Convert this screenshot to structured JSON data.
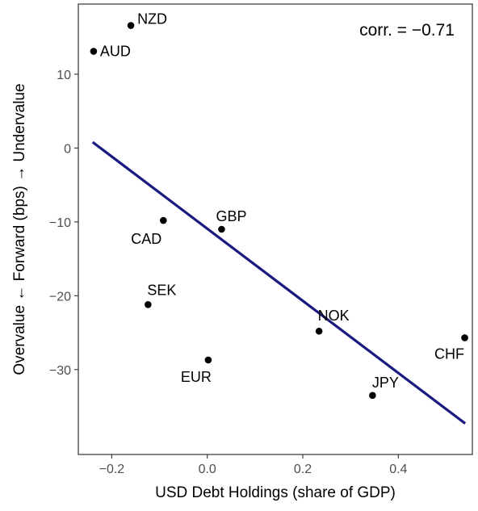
{
  "chart_data": {
    "type": "scatter",
    "xlabel": "USD Debt Holdings (share of GDP)",
    "ylabel": "Overvalue ← Forward (bps) → Undervalue",
    "annotation": "corr. = −0.71",
    "xlim": [
      -0.27,
      0.555
    ],
    "ylim": [
      -41.5,
      19.5
    ],
    "x_ticks": [
      -0.2,
      0.0,
      0.2,
      0.4
    ],
    "x_tick_labels": [
      "−0.2",
      "0.0",
      "0.2",
      "0.4"
    ],
    "y_ticks": [
      10,
      0,
      -10,
      -20,
      -30
    ],
    "y_tick_labels": [
      "10",
      "0",
      "−10",
      "−20",
      "−30"
    ],
    "grid": false,
    "point_color": "#000000",
    "fit_color": "#1a1a80",
    "points": [
      {
        "label": "NZD",
        "x": -0.16,
        "y": 16.6
      },
      {
        "label": "AUD",
        "x": -0.238,
        "y": 13.1
      },
      {
        "label": "CAD",
        "x": -0.092,
        "y": -9.8
      },
      {
        "label": "GBP",
        "x": 0.03,
        "y": -11.0
      },
      {
        "label": "SEK",
        "x": -0.124,
        "y": -21.2
      },
      {
        "label": "EUR",
        "x": 0.002,
        "y": -28.7
      },
      {
        "label": "NOK",
        "x": 0.234,
        "y": -24.8
      },
      {
        "label": "JPY",
        "x": 0.346,
        "y": -33.5
      },
      {
        "label": "CHF",
        "x": 0.539,
        "y": -25.7
      }
    ],
    "fit_line": {
      "x": [
        -0.24,
        0.54
      ],
      "y": [
        0.8,
        -37.3
      ]
    }
  }
}
